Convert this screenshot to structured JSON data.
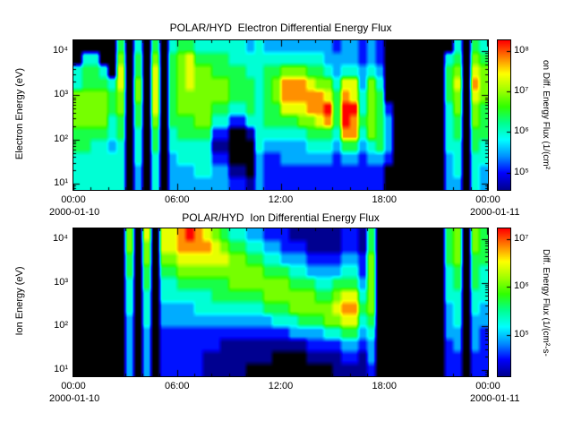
{
  "figure_bg": "#ffffff",
  "colormap": [
    "#000090",
    "#0000ff",
    "#0090ff",
    "#00ffff",
    "#00ff90",
    "#30ff00",
    "#a0ff00",
    "#ffff00",
    "#ff8000",
    "#ff0000"
  ],
  "chart_data": [
    {
      "type": "heatmap",
      "title": "POLAR/HYD  Electron Differential Energy Flux",
      "ylabel": "Electron Energy (eV)",
      "x_date_left": "2000-01-10",
      "x_date_right": "2000-01-11",
      "x_tick_labels": [
        "00:00",
        "06:00",
        "12:00",
        "18:00",
        "00:00"
      ],
      "x_hours_range": [
        0,
        24
      ],
      "x_major_tick_every_hours": 6,
      "x_minor_tick_every_hours": 1,
      "y_tick_labels": [
        "10⁴",
        "10³",
        "10²",
        "10¹"
      ],
      "y_tick_exps": [
        4,
        3,
        2,
        1
      ],
      "y_range_exp": [
        0.86,
        4.24
      ],
      "grid_lines": false,
      "colorbar": {
        "label": "on Diff. Energy Flux (1/(cm²",
        "tick_labels": [
          "10⁸",
          "10⁷",
          "10⁶",
          "10⁵"
        ],
        "tick_exps": [
          8,
          7,
          6,
          5
        ],
        "range_exp": [
          4.57,
          8.26
        ]
      },
      "grid": {
        "rows": 12,
        "cols": 48,
        "row_order": "top-to-bottom (high energy first)",
        "value_key": "0 = no data (black); 1-9 = log10 flux, low to high, mapped onto colorbar range",
        "values": [
          "000005040504554444443433333333233232000000004054",
          "044006050605675555444444444443333232000000045065",
          "455407050705676655554455666554344343000000056076",
          "455547060705676666555456888766477364000000057086",
          "666656060705666666555456888887587465000000056076",
          "666656050705666655445455777889599465200000046065",
          "666645050605556644224455556678598565300000045065",
          "555545040504555522001444444555488465300000045055",
          "554434040504444411000433333444355345300000044054",
          "444444040403444422000322333333233233200000034044",
          "444444030403334433110322222222222222000000034043",
          "444444030403333333221322222222222222000000033043"
        ]
      }
    },
    {
      "type": "heatmap",
      "title": "POLAR/HYD  Ion Differential Energy Flux",
      "ylabel": "Ion Energy (eV)",
      "x_date_left": "2000-01-10",
      "x_date_right": "2000-01-11",
      "x_tick_labels": [
        "00:00",
        "06:00",
        "12:00",
        "18:00",
        "00:00"
      ],
      "x_hours_range": [
        0,
        24
      ],
      "x_major_tick_every_hours": 6,
      "x_minor_tick_every_hours": 1,
      "y_tick_labels": [
        "10⁴",
        "10³",
        "10²",
        "10¹"
      ],
      "y_tick_exps": [
        4,
        3,
        2,
        1
      ],
      "y_range_exp": [
        0.86,
        4.24
      ],
      "grid_lines": false,
      "colorbar": {
        "label": "Diff. Energy Flux (1/(cm²-s-",
        "tick_labels": [
          "10⁷",
          "10⁶",
          "10⁵"
        ],
        "tick_exps": [
          7,
          6,
          5
        ],
        "range_exp": [
          4.13,
          7.22
        ]
      },
      "grid": {
        "rows": 12,
        "cols": 48,
        "row_order": "top-to-bottom (high energy first)",
        "value_key": "0 = no data (black); 1-9 = log10 flux, low to high, mapped onto colorbar range",
        "values": [
          "000000607077898765443322211111122150000000056065",
          "000000606077888876554433222111122150000000056065",
          "000000506066777777665544333222233260000000056055",
          "000000505055666666666655544333344260000000045054",
          "000000405044555555666666655544555360000000045054",
          "000000404044444455555566666655677460000000044044",
          "000000404033334444444455566666788560000000034043",
          "000000304033333333333334445556677450000000034033",
          "000000303022222222222222233334455340000000033032",
          "000000303022222221111111111222233230000000023032",
          "000000303022222111111110000111122130000000022022",
          "000000303022222111110000000000111120000000022022"
        ]
      }
    }
  ]
}
